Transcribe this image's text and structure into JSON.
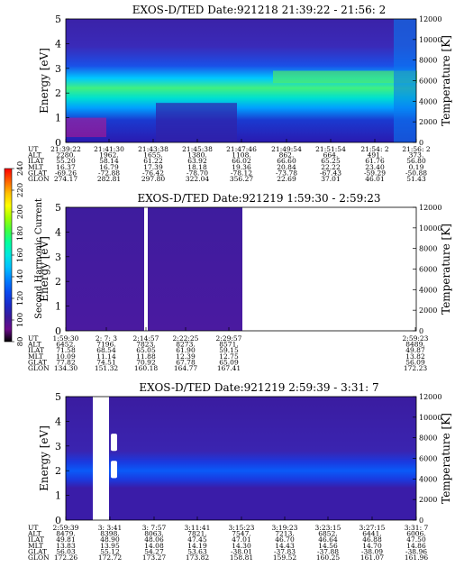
{
  "colorbar": {
    "label": "Second Harmonic Current",
    "ticks": [
      "80",
      "100",
      "120",
      "140",
      "160",
      "180",
      "200",
      "220",
      "240"
    ],
    "colors": [
      "#000000",
      "#6a0a8a",
      "#3a1a9a",
      "#1a2aca",
      "#0a4af0",
      "#0080ff",
      "#00c0ff",
      "#00e8e0",
      "#00ffa0",
      "#40ff40",
      "#a0ff00",
      "#ffff00",
      "#ffc000",
      "#ff6000",
      "#ff0000"
    ]
  },
  "chart_data": [
    {
      "type": "heatmap",
      "title": "EXOS-D/TED   Date:921218  21:39:22 - 21:56: 2",
      "ylabel": "Energy [eV]",
      "ylabel_right": "Temperature [K]",
      "ylim": [
        0,
        5
      ],
      "yticks": [
        "0",
        "1",
        "2",
        "3",
        "4",
        "5"
      ],
      "ylim_right": [
        0,
        12000
      ],
      "yticks_right": [
        "0",
        "2000",
        "4000",
        "6000",
        "8000",
        "10000",
        "12000"
      ],
      "row_labels": [
        "UT",
        "ALT",
        "ILAT",
        "MLT",
        "GLAT",
        "GLON"
      ],
      "columns": [
        [
          "21:39:22",
          "2280.",
          "55.20",
          "16.37",
          "-69.26",
          "274.17"
        ],
        [
          "21:41:30",
          "1962.",
          "58.14",
          "16.79",
          "-72.88",
          "282.81"
        ],
        [
          "21:43:38",
          "1655.",
          "61.22",
          "17.39",
          "-76.42",
          "297.80"
        ],
        [
          "21:45:38",
          "1380.",
          "63.92",
          "18.18",
          "-78.70",
          "322.04"
        ],
        [
          "21:47:46",
          "1108.",
          "66.02",
          "19.36",
          "-78.12",
          "356.27"
        ],
        [
          "21:49:54",
          "862.",
          "66.60",
          "20.84",
          "-73.78",
          "22.69"
        ],
        [
          "21:51:54",
          "664.",
          "65.25",
          "22.22",
          "-67.43",
          "37.01"
        ],
        [
          "21:54: 2",
          "491.",
          "61.76",
          "23.40",
          "-59.29",
          "46.01"
        ],
        [
          "21:56: 2",
          "373.",
          "56.80",
          "0.19",
          "-50.88",
          "51.43"
        ]
      ],
      "gaps": []
    },
    {
      "type": "heatmap",
      "title": "EXOS-D/TED   Date:921219  1:59:30 - 2:59:23",
      "ylabel": "Energy [eV]",
      "ylabel_right": "Temperature [K]",
      "ylim": [
        0,
        5
      ],
      "yticks": [
        "0",
        "1",
        "2",
        "3",
        "4",
        "5"
      ],
      "ylim_right": [
        0,
        12000
      ],
      "yticks_right": [
        "0",
        "2000",
        "4000",
        "6000",
        "8000",
        "10000",
        "12000"
      ],
      "row_labels": [
        "UT",
        "ALT",
        "ILAT",
        "MLT",
        "GLAT",
        "GLON"
      ],
      "columns": [
        [
          "1:59:30",
          "6452.",
          "71.58",
          "10.09",
          "77.82",
          "134.30"
        ],
        [
          "2: 7: 3",
          "7196.",
          "68.54",
          "11.14",
          "74.51",
          "151.32"
        ],
        [
          "2:14:57",
          "7823.",
          "65.05",
          "11.88",
          "70.92",
          "160.18"
        ],
        [
          "2:22:25",
          "8273.",
          "61.90",
          "12.39",
          "67.78",
          "164.77"
        ],
        [
          "2:29:57",
          "8571.",
          "59.15",
          "12.75",
          "65.09",
          "167.41"
        ],
        [
          "2:59:23",
          "8489.",
          "49.87",
          "13.82",
          "56.09",
          "172.23"
        ]
      ],
      "gaps": []
    },
    {
      "type": "heatmap",
      "title": "EXOS-D/TED   Date:921219  2:59:39 - 3:31: 7",
      "ylabel": "Energy [eV]",
      "ylabel_right": "Temperature [K]",
      "ylim": [
        0,
        5
      ],
      "yticks": [
        "0",
        "1",
        "2",
        "3",
        "4",
        "5"
      ],
      "ylim_right": [
        0,
        12000
      ],
      "yticks_right": [
        "0",
        "2000",
        "4000",
        "6000",
        "8000",
        "10000",
        "12000"
      ],
      "row_labels": [
        "UT",
        "ALT",
        "ILAT",
        "MLT",
        "GLAT",
        "GLON"
      ],
      "columns": [
        [
          "2:59:39",
          "8479.",
          "49.81",
          "13.83",
          "56.03",
          "172.26"
        ],
        [
          "3: 3:41",
          "8398.",
          "48.90",
          "13.95",
          "55.12",
          "172.72"
        ],
        [
          "3: 7:57",
          "8063.",
          "48.06",
          "14.08",
          "54.27",
          "173.27"
        ],
        [
          "3:11:41",
          "7821.",
          "47.45",
          "14.19",
          "53.63",
          "173.82"
        ],
        [
          "3:15:23",
          "7547.",
          "47.01",
          "14.30",
          "-38.01",
          "158.81"
        ],
        [
          "3:19:23",
          "7213.",
          "46.70",
          "14.43",
          "-37.83",
          "159.52"
        ],
        [
          "3:23:15",
          "6852.",
          "46.64",
          "14.56",
          "-37.88",
          "160.25"
        ],
        [
          "3:27:15",
          "6441.",
          "46.88",
          "14.70",
          "-38.09",
          "161.07"
        ],
        [
          "3:31: 7",
          "6006.",
          "47.50",
          "14.86",
          "-38.96",
          "161.96"
        ]
      ],
      "gaps": []
    }
  ]
}
